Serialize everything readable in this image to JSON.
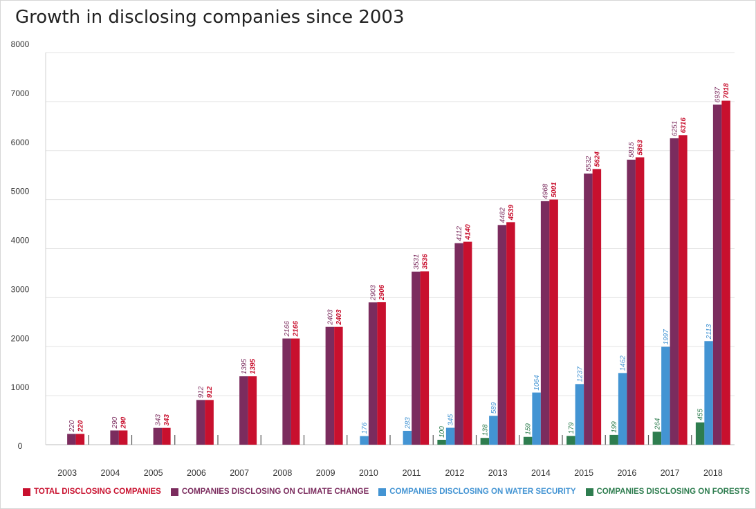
{
  "chart_data": {
    "type": "bar",
    "title": "Growth in disclosing companies since 2003",
    "xlabel": "",
    "ylabel": "",
    "ylim": [
      0,
      8000
    ],
    "yticks": [
      0,
      1000,
      2000,
      3000,
      4000,
      5000,
      6000,
      7000,
      8000
    ],
    "grid": true,
    "legend_position": "bottom",
    "categories": [
      "2003",
      "2004",
      "2005",
      "2006",
      "2007",
      "2008",
      "2009",
      "2010",
      "2011",
      "2012",
      "2013",
      "2014",
      "2015",
      "2016",
      "2017",
      "2018"
    ],
    "series": [
      {
        "name": "COMPANIES DISCLOSING ON FORESTS",
        "color": "#2e7d4f",
        "values": [
          null,
          null,
          null,
          null,
          null,
          null,
          null,
          null,
          null,
          100,
          138,
          159,
          179,
          199,
          264,
          455
        ]
      },
      {
        "name": "COMPANIES DISCLOSING ON WATER SECURITY",
        "color": "#4394d3",
        "values": [
          null,
          null,
          null,
          null,
          null,
          null,
          null,
          176,
          283,
          345,
          589,
          1064,
          1237,
          1462,
          1997,
          2113
        ]
      },
      {
        "name": "COMPANIES DISCLOSING ON CLIMATE CHANGE",
        "color": "#7b2c5e",
        "values": [
          220,
          290,
          343,
          912,
          1395,
          2166,
          2403,
          2903,
          3531,
          4112,
          4482,
          4968,
          5532,
          5815,
          6251,
          6937
        ]
      },
      {
        "name": "TOTAL DISCLOSING COMPANIES",
        "color": "#c8102e",
        "values": [
          220,
          290,
          343,
          912,
          1395,
          2166,
          2403,
          2906,
          3536,
          4140,
          4539,
          5001,
          5624,
          5863,
          6316,
          7018
        ]
      }
    ]
  },
  "legend": [
    {
      "label": "TOTAL DISCLOSING COMPANIES",
      "color": "#c8102e"
    },
    {
      "label": "COMPANIES DISCLOSING ON CLIMATE CHANGE",
      "color": "#7b2c5e"
    },
    {
      "label": "COMPANIES DISCLOSING ON WATER SECURITY",
      "color": "#4394d3"
    },
    {
      "label": "COMPANIES DISCLOSING ON FORESTS",
      "color": "#2e7d4f"
    }
  ]
}
